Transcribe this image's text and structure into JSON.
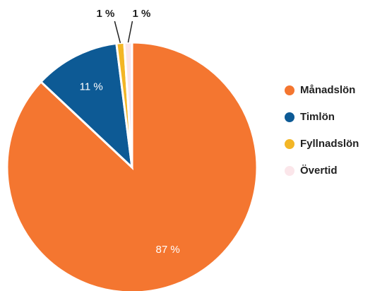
{
  "chart_data": {
    "type": "pie",
    "categories": [
      "Månadslön",
      "Timlön",
      "Fyllnadslön",
      "Övertid"
    ],
    "values": [
      87,
      11,
      1,
      1
    ],
    "value_labels": [
      "87 %",
      "11 %",
      "1 %",
      "1 %"
    ],
    "colors": [
      "#f47630",
      "#0d5a95",
      "#f3b626",
      "#fbe6ea"
    ],
    "legend": "right"
  }
}
